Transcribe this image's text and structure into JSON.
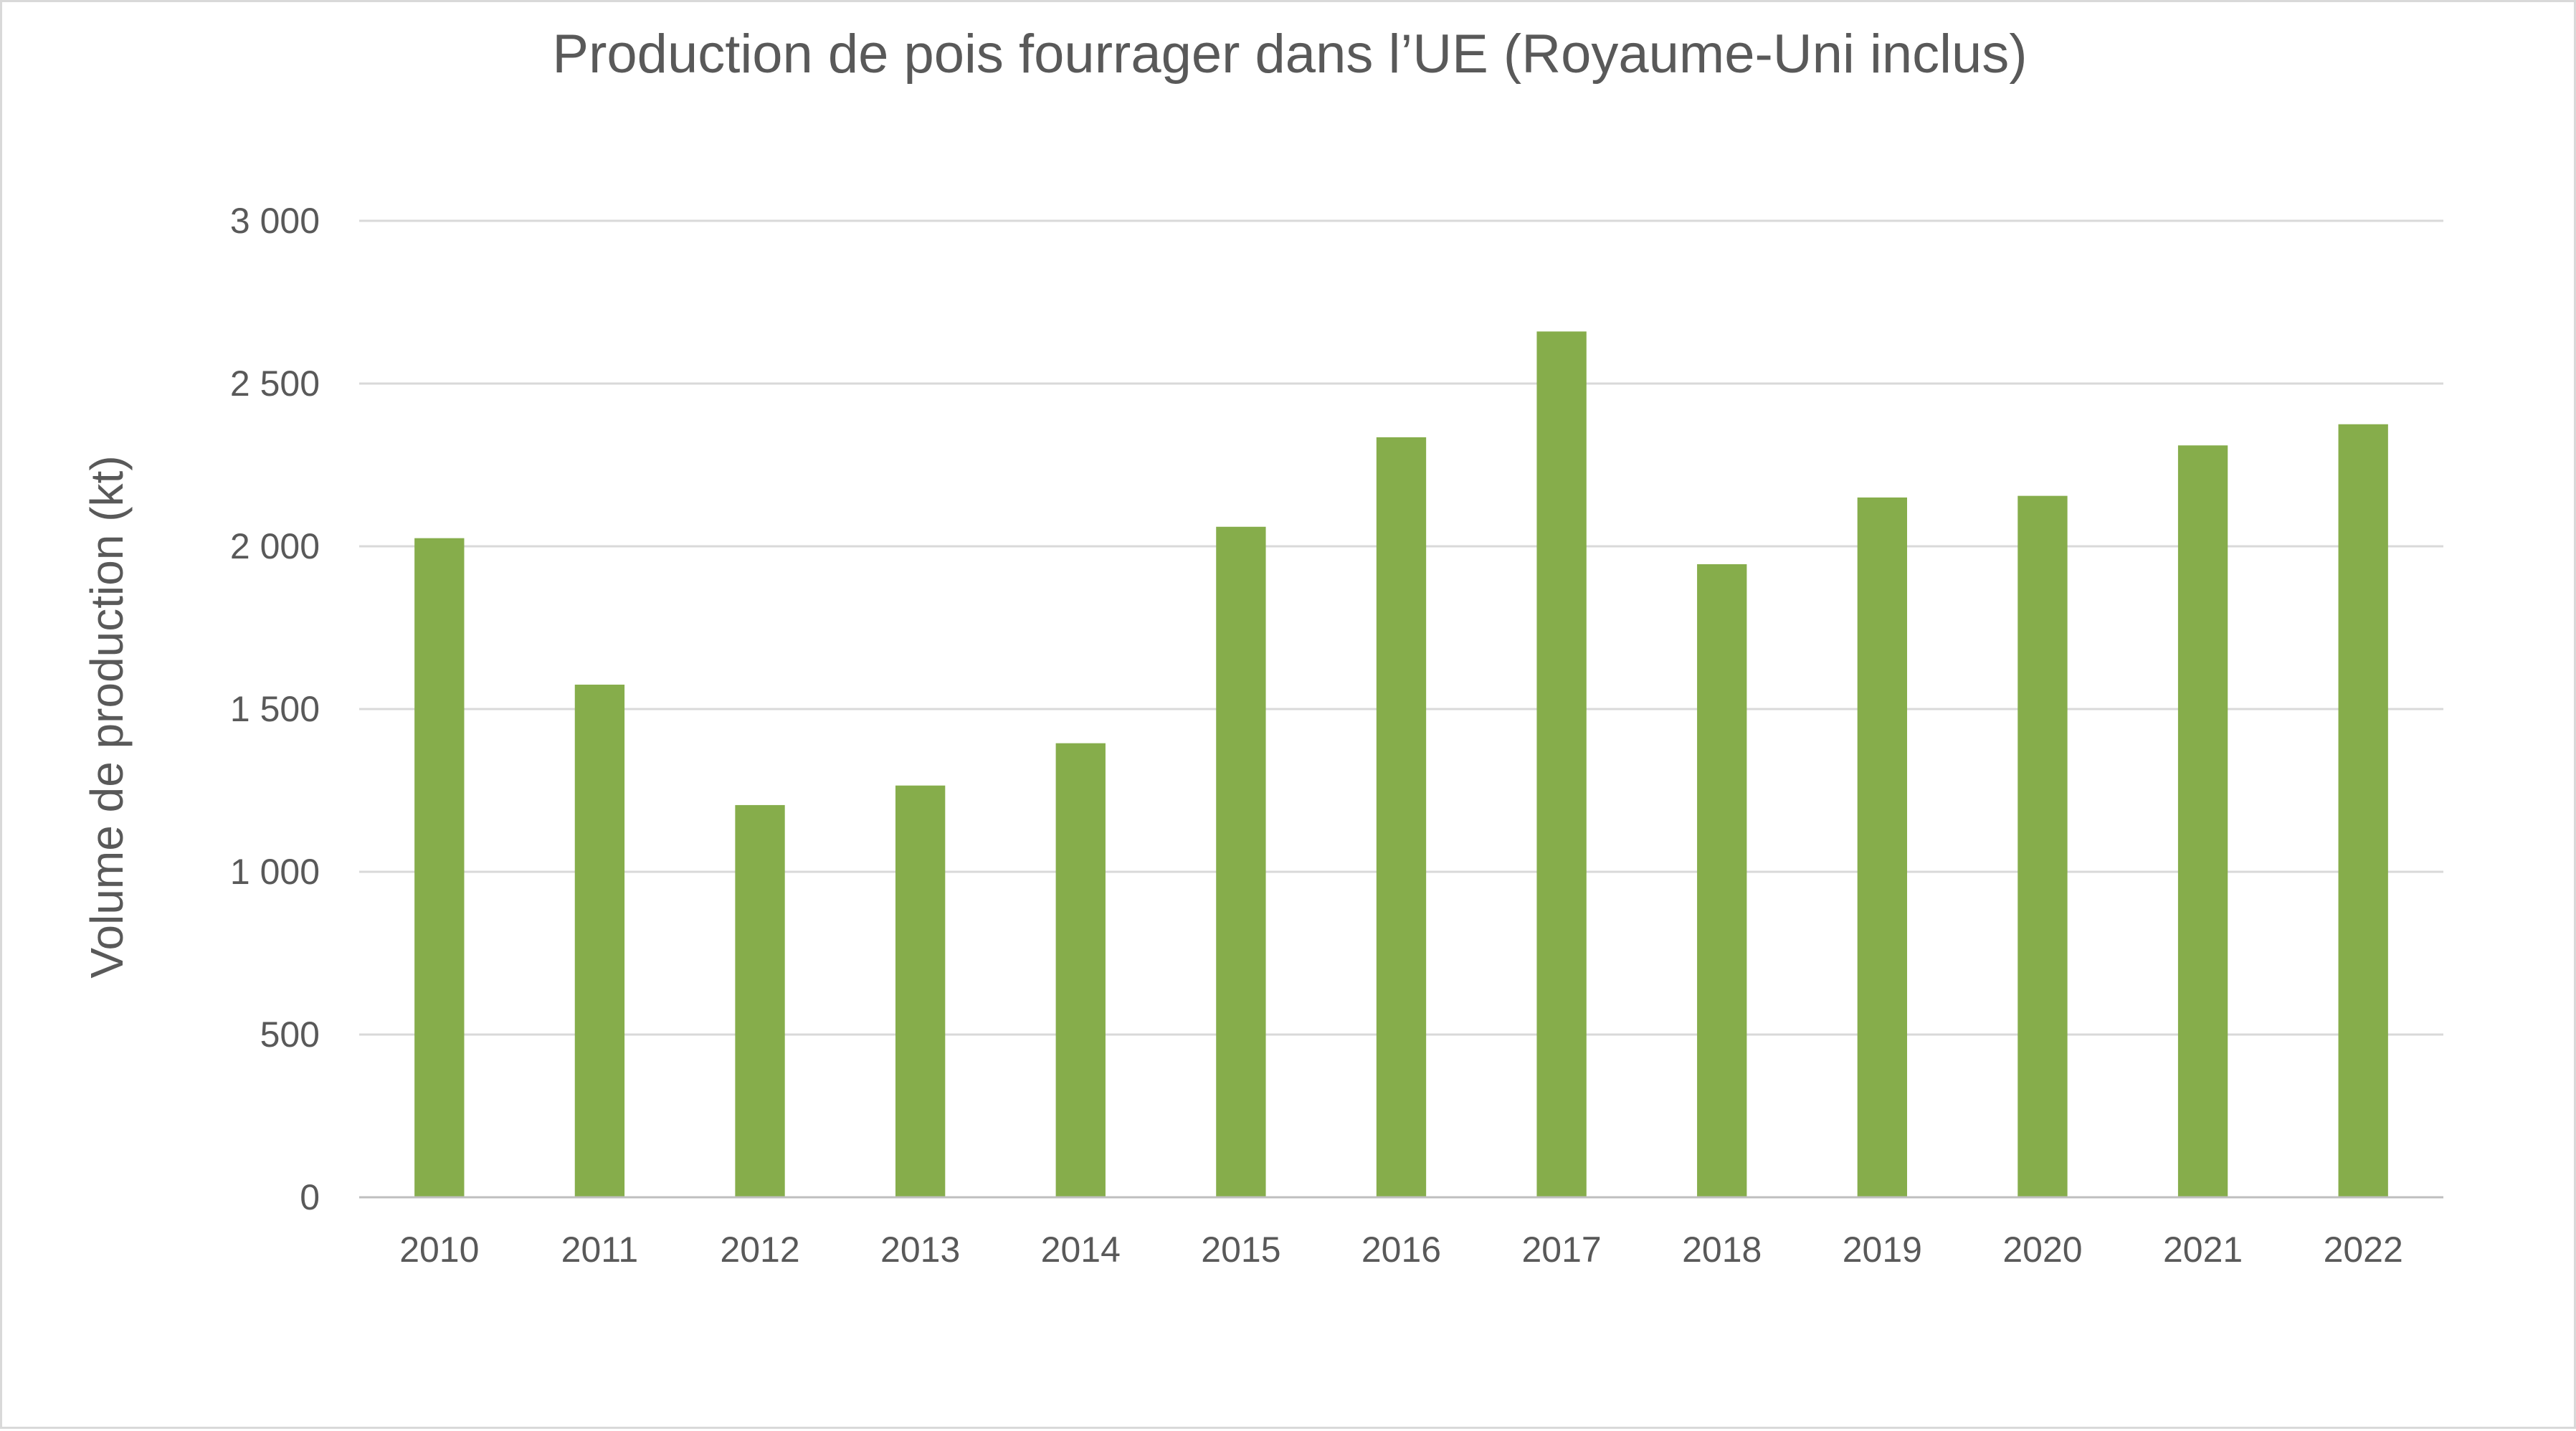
{
  "chart_data": {
    "type": "bar",
    "title": "Production de pois fourrager dans l’UE (Royaume-Uni inclus)",
    "xlabel": "",
    "ylabel": "Volume de production (kt)",
    "categories": [
      "2010",
      "2011",
      "2012",
      "2013",
      "2014",
      "2015",
      "2016",
      "2017",
      "2018",
      "2019",
      "2020",
      "2021",
      "2022"
    ],
    "series": [
      {
        "values": [
          2025,
          1575,
          1205,
          1265,
          1395,
          2060,
          2335,
          2660,
          1945,
          2150,
          2155,
          2310,
          2375
        ]
      }
    ],
    "ylim": [
      0,
      3000
    ],
    "yticks": [
      0,
      500,
      1000,
      1500,
      2000,
      2500,
      3000
    ],
    "ytick_labels": [
      "0",
      "500",
      "1 000",
      "1 500",
      "2 000",
      "2 500",
      "3 000"
    ],
    "grid": true,
    "legend": "none",
    "colors": {
      "bar": "#86ad4b",
      "grid": "#d9d9d9",
      "text": "#595959"
    }
  }
}
